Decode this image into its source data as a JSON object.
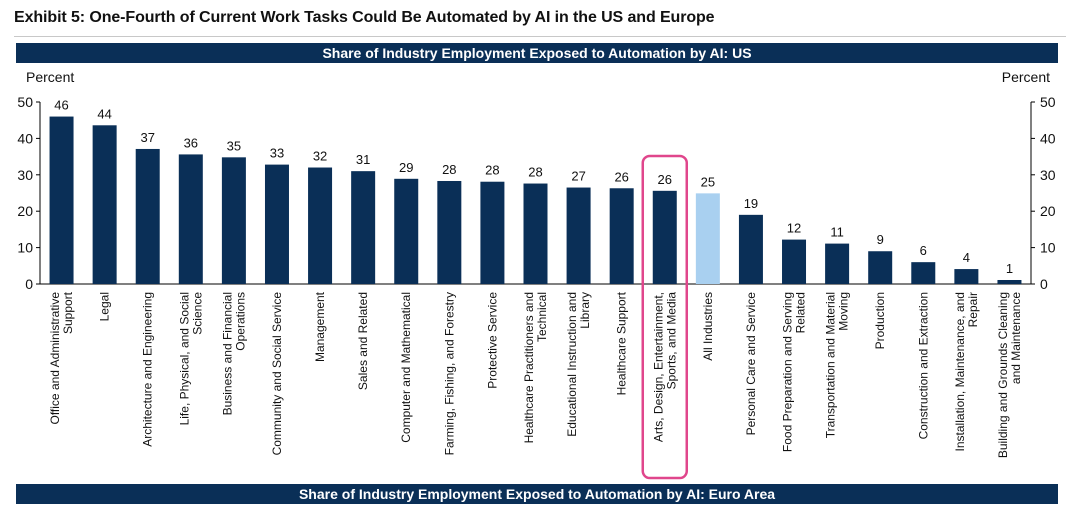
{
  "exhibit_title": "Exhibit 5: One-Fourth of Current Work Tasks Could Be Automated by AI in the US and Europe",
  "panel_titles": {
    "us": "Share of Industry Employment Exposed to Automation by AI: US",
    "euro": "Share of Industry Employment Exposed to Automation by AI: Euro Area"
  },
  "chart_data": {
    "type": "bar",
    "title": "Share of Industry Employment Exposed to Automation by AI: US",
    "ylabel_left": "Percent",
    "ylabel_right": "Percent",
    "ylim": [
      0,
      50
    ],
    "yticks": [
      0,
      10,
      20,
      30,
      40,
      50
    ],
    "grid": false,
    "categories": [
      [
        "Office and Administrative",
        "Support"
      ],
      [
        "Legal"
      ],
      [
        "Architecture and Engineering"
      ],
      [
        "Life, Physical, and Social",
        "Science"
      ],
      [
        "Business and Financial",
        "Operations"
      ],
      [
        "Community and Social Service"
      ],
      [
        "Management"
      ],
      [
        "Sales and Related"
      ],
      [
        "Computer and Mathematical"
      ],
      [
        "Farming, Fishing, and Forestry"
      ],
      [
        "Protective Service"
      ],
      [
        "Healthcare Practitioners and",
        "Technical"
      ],
      [
        "Educational Instruction and",
        "Library"
      ],
      [
        "Healthcare Support"
      ],
      [
        "Arts, Design, Entertainment,",
        "Sports, and Media"
      ],
      [
        "All Industries"
      ],
      [
        "Personal Care and Service"
      ],
      [
        "Food Preparation and Serving",
        "Related"
      ],
      [
        "Transportation and Material",
        "Moving"
      ],
      [
        "Production"
      ],
      [
        "Construction and Extraction"
      ],
      [
        "Installation, Maintenance, and",
        "Repair"
      ],
      [
        "Building and Grounds Cleaning",
        "and Maintenance"
      ]
    ],
    "values": [
      46,
      44,
      37,
      36,
      35,
      33,
      32,
      31,
      29,
      28,
      28,
      28,
      27,
      26,
      26,
      25,
      19,
      12,
      11,
      9,
      6,
      4,
      1
    ],
    "data_labels": [
      "46",
      "44",
      "37",
      "36",
      "35",
      "33",
      "32",
      "31",
      "29",
      "28",
      "28",
      "28",
      "27",
      "26",
      "26",
      "25",
      "19",
      "12",
      "11",
      "9",
      "6",
      "4",
      "1"
    ],
    "bar_heights": [
      46,
      43.6,
      37.1,
      35.6,
      34.8,
      32.8,
      32,
      31,
      28.9,
      28.3,
      28.1,
      27.6,
      26.5,
      26.3,
      25.6,
      24.9,
      19,
      12.2,
      11.1,
      9,
      6,
      4.1,
      1.1
    ],
    "colors": {
      "bar": "#0a2f57",
      "highlight_bar": "#a9d0f0",
      "highlight_box": "#e0468c"
    },
    "highlight_category_index": 15,
    "boxed_category_index": 14
  }
}
